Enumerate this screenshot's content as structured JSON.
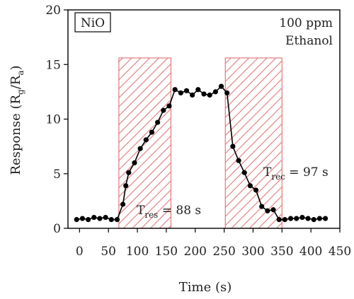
{
  "chart_data": {
    "type": "line",
    "xlabel": "Time (s)",
    "ylabel": {
      "main": "Response (R",
      "sub1": "g",
      "mid": "/R",
      "sub2": "a",
      "end": ")"
    },
    "xlim": [
      -20,
      450
    ],
    "ylim": [
      0,
      20
    ],
    "xticks": [
      0,
      50,
      100,
      150,
      200,
      250,
      300,
      350,
      400,
      450
    ],
    "yticks": [
      0,
      5,
      10,
      15,
      20
    ],
    "grid": false,
    "legend": {
      "label": "NiO",
      "placement": "top-left"
    },
    "annotation_topright": [
      "100 ppm",
      "Ethanol"
    ],
    "series": [
      {
        "color": "#000000",
        "marker": "circle",
        "x": [
          -5,
          5,
          15,
          25,
          35,
          45,
          55,
          65,
          75,
          80,
          85,
          95,
          105,
          115,
          125,
          135,
          145,
          155,
          165,
          175,
          185,
          195,
          205,
          215,
          225,
          235,
          245,
          255,
          265,
          275,
          285,
          295,
          305,
          315,
          325,
          335,
          345,
          355,
          365,
          375,
          385,
          395,
          405,
          415,
          425
        ],
        "y": [
          0.8,
          0.9,
          0.8,
          1.0,
          0.9,
          1.0,
          0.8,
          0.8,
          2.2,
          3.9,
          5.1,
          6.0,
          7.3,
          8.1,
          8.8,
          9.7,
          10.8,
          11.2,
          12.7,
          12.4,
          12.6,
          12.2,
          12.7,
          12.3,
          12.2,
          12.5,
          13.0,
          12.4,
          7.5,
          6.2,
          5.1,
          3.9,
          3.5,
          2.0,
          1.6,
          1.7,
          0.8,
          0.8,
          0.9,
          0.9,
          1.0,
          0.9,
          0.8,
          0.9,
          0.9
        ]
      }
    ],
    "shaded_regions": [
      {
        "x_start": 68,
        "x_end": 158,
        "y_top": 15.6,
        "color": "#e07a7a"
      },
      {
        "x_start": 252,
        "x_end": 350,
        "y_top": 15.6,
        "color": "#e07a7a"
      }
    ],
    "annotations": [
      {
        "base": "T",
        "sub": "res",
        "text": " = 88 s",
        "x": 80,
        "y": 1.1
      },
      {
        "base": "T",
        "sub": "rec",
        "text": " = 97 s",
        "x": 298,
        "y": 4.5
      }
    ]
  }
}
